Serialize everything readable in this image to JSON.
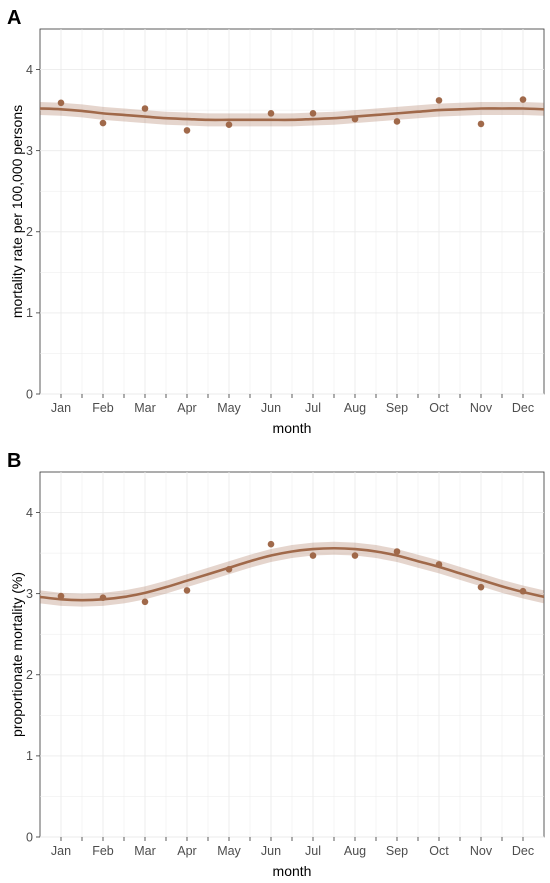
{
  "figure": {
    "panels": [
      {
        "letter": "A",
        "xlabel": "month",
        "ylabel": "mortality rate per 100,000 persons",
        "chart_id": 0
      },
      {
        "letter": "B",
        "xlabel": "month",
        "ylabel": "proportionate mortality (%)",
        "chart_id": 1
      }
    ]
  },
  "colors": {
    "point": "#a0694a",
    "line": "#a0694a",
    "ribbon": "#a0694a",
    "grid": "#ebebeb",
    "border": "#333333"
  },
  "chart_data": [
    {
      "type": "scatter",
      "panel": "A",
      "title": "",
      "xlabel": "month",
      "ylabel": "mortality rate per 100,000 persons",
      "categories": [
        "Jan",
        "Feb",
        "Mar",
        "Apr",
        "May",
        "Jun",
        "Jul",
        "Aug",
        "Sep",
        "Oct",
        "Nov",
        "Dec"
      ],
      "ylim": [
        0,
        4.5
      ],
      "yticks": [
        0,
        1,
        2,
        3,
        4
      ],
      "grid": true,
      "points": [
        3.59,
        3.34,
        3.52,
        3.25,
        3.32,
        3.46,
        3.46,
        3.39,
        3.36,
        3.62,
        3.33,
        3.63
      ],
      "fit": {
        "x": [
          0.5,
          1,
          1.5,
          2,
          2.5,
          3,
          3.5,
          4,
          4.5,
          5,
          5.5,
          6,
          6.5,
          7,
          7.5,
          8,
          8.5,
          9,
          9.5,
          10,
          10.5,
          11,
          11.5,
          12,
          12.5
        ],
        "y": [
          3.52,
          3.51,
          3.49,
          3.46,
          3.44,
          3.42,
          3.4,
          3.39,
          3.38,
          3.38,
          3.38,
          3.38,
          3.38,
          3.39,
          3.4,
          3.42,
          3.44,
          3.46,
          3.48,
          3.5,
          3.51,
          3.52,
          3.52,
          3.52,
          3.51
        ],
        "se": 0.08
      }
    },
    {
      "type": "scatter",
      "panel": "B",
      "title": "",
      "xlabel": "month",
      "ylabel": "proportionate mortality (%)",
      "categories": [
        "Jan",
        "Feb",
        "Mar",
        "Apr",
        "May",
        "Jun",
        "Jul",
        "Aug",
        "Sep",
        "Oct",
        "Nov",
        "Dec"
      ],
      "ylim": [
        0,
        4.5
      ],
      "yticks": [
        0,
        1,
        2,
        3,
        4
      ],
      "grid": true,
      "points": [
        2.97,
        2.95,
        2.9,
        3.04,
        3.3,
        3.61,
        3.47,
        3.47,
        3.52,
        3.36,
        3.08,
        3.03
      ],
      "fit": {
        "x": [
          0.5,
          1,
          1.5,
          2,
          2.5,
          3,
          3.5,
          4,
          4.5,
          5,
          5.5,
          6,
          6.5,
          7,
          7.5,
          8,
          8.5,
          9,
          9.5,
          10,
          10.5,
          11,
          11.5,
          12,
          12.5
        ],
        "y": [
          2.96,
          2.93,
          2.92,
          2.93,
          2.96,
          3.01,
          3.08,
          3.16,
          3.24,
          3.32,
          3.4,
          3.47,
          3.52,
          3.55,
          3.56,
          3.55,
          3.52,
          3.47,
          3.4,
          3.33,
          3.25,
          3.17,
          3.09,
          3.02,
          2.96
        ],
        "se": 0.08
      }
    }
  ]
}
